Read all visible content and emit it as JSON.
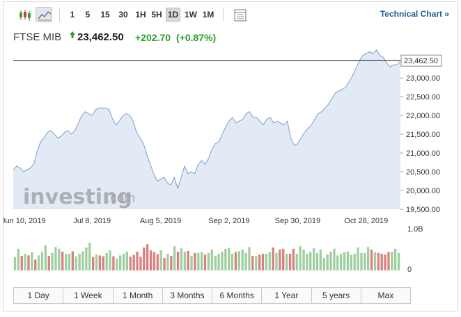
{
  "toolbar": {
    "intervals": [
      "1",
      "5",
      "15",
      "30",
      "1H",
      "5H",
      "1D",
      "1W",
      "1M"
    ],
    "active_interval": "1D",
    "technical_chart_label": "Technical Chart »"
  },
  "quote": {
    "name": "FTSE MIB",
    "price": "23,462.50",
    "change": "+202.70",
    "change_pct": "(+0.87%)"
  },
  "ranges": [
    "1 Day",
    "1 Week",
    "1 Month",
    "3 Months",
    "6 Months",
    "1 Year",
    "5 years",
    "Max"
  ],
  "colors": {
    "line": "#7a9fc9",
    "area": "#e2ebf5",
    "up_bar": "#9fcf9f",
    "down_bar": "#d98080",
    "positive": "#2a9d2a",
    "link": "#1f5a93"
  },
  "watermark": {
    "brand": "investing",
    "suffix": ".com"
  },
  "chart_data": {
    "type": "area",
    "title": "",
    "xlabel": "",
    "ylabel": "",
    "ylim": [
      19500,
      23800
    ],
    "yticks": [
      19500,
      20000,
      20500,
      21000,
      21500,
      22000,
      22500,
      23000
    ],
    "ytick_labels": [
      "19,500.00",
      "20,000.00",
      "20,500.00",
      "21,000.00",
      "21,500.00",
      "22,000.00",
      "22,500.00",
      "23,000.00"
    ],
    "x_tick_labels": [
      {
        "label": "Jun 10, 2019",
        "index": 3
      },
      {
        "label": "Jul 8, 2019",
        "index": 23
      },
      {
        "label": "Aug 5, 2019",
        "index": 43
      },
      {
        "label": "Sep 2, 2019",
        "index": 63
      },
      {
        "label": "Sep 30, 2019",
        "index": 83
      },
      {
        "label": "Oct 28, 2019",
        "index": 103
      }
    ],
    "last_value": 23462.5,
    "last_value_label": "23,462.50",
    "values": [
      20550,
      20650,
      20600,
      20500,
      20550,
      20600,
      20700,
      21050,
      21300,
      21400,
      21550,
      21600,
      21500,
      21400,
      21450,
      21550,
      21600,
      21500,
      21600,
      21800,
      22000,
      22100,
      22050,
      22000,
      22150,
      22200,
      22200,
      22200,
      22150,
      21900,
      21750,
      21850,
      22000,
      22050,
      22000,
      21850,
      21550,
      21400,
      21250,
      20950,
      20700,
      20450,
      20250,
      20300,
      20350,
      20200,
      20150,
      20350,
      20050,
      20350,
      20650,
      20450,
      20500,
      20450,
      20700,
      20800,
      20700,
      20850,
      21100,
      21250,
      21300,
      21500,
      21700,
      21850,
      21950,
      21800,
      21850,
      21900,
      22050,
      22100,
      21950,
      21950,
      21850,
      21750,
      21900,
      21950,
      21800,
      21850,
      21800,
      21750,
      21850,
      21400,
      21200,
      21250,
      21400,
      21550,
      21650,
      21750,
      21900,
      22050,
      22100,
      22200,
      22300,
      22450,
      22600,
      22650,
      22700,
      22750,
      22900,
      23050,
      23250,
      23450,
      23600,
      23650,
      23700,
      23650,
      23750,
      23600,
      23550,
      23400,
      23300,
      23350,
      23350,
      23450
    ],
    "volume_axis_labels": [
      "1.0B",
      "0"
    ],
    "volume_max": 1.0,
    "volumes": [
      0.32,
      0.52,
      0.35,
      0.4,
      0.36,
      0.44,
      0.26,
      0.36,
      0.45,
      0.6,
      0.35,
      0.42,
      0.56,
      0.52,
      0.45,
      0.4,
      0.4,
      0.46,
      0.34,
      0.4,
      0.46,
      0.55,
      0.66,
      0.32,
      0.38,
      0.36,
      0.34,
      0.42,
      0.48,
      0.34,
      0.28,
      0.36,
      0.4,
      0.45,
      0.33,
      0.37,
      0.45,
      0.33,
      0.55,
      0.63,
      0.48,
      0.44,
      0.39,
      0.48,
      0.3,
      0.4,
      0.35,
      0.58,
      0.45,
      0.53,
      0.45,
      0.47,
      0.35,
      0.42,
      0.42,
      0.44,
      0.38,
      0.42,
      0.5,
      0.35,
      0.4,
      0.45,
      0.52,
      0.54,
      0.4,
      0.44,
      0.46,
      0.5,
      0.42,
      0.56,
      0.35,
      0.34,
      0.38,
      0.4,
      0.4,
      0.44,
      0.55,
      0.42,
      0.5,
      0.52,
      0.4,
      0.4,
      0.52,
      0.4,
      0.58,
      0.5,
      0.4,
      0.44,
      0.53,
      0.42,
      0.5,
      0.3,
      0.38,
      0.45,
      0.52,
      0.36,
      0.4,
      0.44,
      0.45,
      0.38,
      0.4,
      0.55,
      0.42,
      0.42,
      0.56,
      0.5,
      0.44,
      0.42,
      0.4,
      0.38,
      0.44,
      0.45,
      0.52,
      0.42
    ],
    "volume_up": [
      1,
      1,
      0,
      1,
      0,
      1,
      0,
      1,
      1,
      1,
      0,
      1,
      1,
      1,
      0,
      1,
      1,
      0,
      1,
      1,
      1,
      1,
      1,
      0,
      1,
      0,
      0,
      1,
      1,
      0,
      1,
      1,
      1,
      1,
      0,
      0,
      0,
      0,
      0,
      0,
      0,
      0,
      0,
      1,
      0,
      1,
      0,
      1,
      0,
      1,
      1,
      0,
      1,
      0,
      1,
      1,
      0,
      1,
      1,
      1,
      1,
      1,
      1,
      1,
      1,
      0,
      1,
      1,
      1,
      1,
      0,
      1,
      0,
      0,
      1,
      1,
      0,
      1,
      0,
      0,
      1,
      0,
      0,
      1,
      1,
      1,
      1,
      1,
      1,
      1,
      1,
      1,
      1,
      1,
      1,
      1,
      1,
      1,
      1,
      1,
      1,
      1,
      1,
      1,
      1,
      0,
      1,
      0,
      0,
      0,
      0,
      1,
      1,
      1
    ]
  }
}
